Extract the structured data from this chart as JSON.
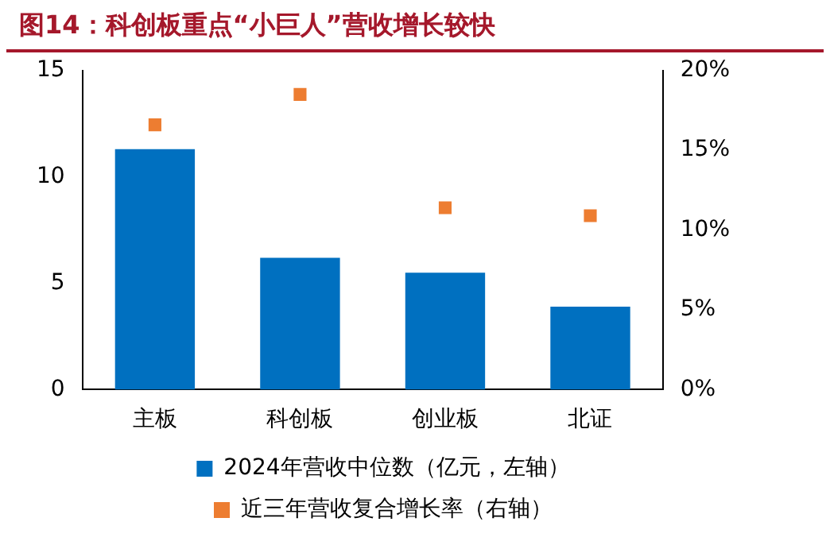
{
  "chart_data": {
    "type": "bar",
    "title": "图14：科创板重点“小巨人”营收增长较快",
    "categories": [
      "主板",
      "科创板",
      "创业板",
      "北证"
    ],
    "series": [
      {
        "name": "2024年营收中位数（亿元，左轴）",
        "color": "#0070c0",
        "values": [
          11.3,
          6.2,
          5.5,
          3.9
        ]
      },
      {
        "name": "近三年营收复合增长率（右轴）",
        "type": "scatter",
        "axis": "y2",
        "color": "#ed7d31",
        "values": [
          16.6,
          18.5,
          11.4,
          10.9
        ]
      }
    ],
    "ylim": [
      0,
      15
    ],
    "yticks": [
      0,
      5,
      10,
      15
    ],
    "y2lim": [
      0,
      20
    ],
    "y2ticks": [
      {
        "value": 0,
        "label": "0%"
      },
      {
        "value": 5,
        "label": "5%"
      },
      {
        "value": 10,
        "label": "10%"
      },
      {
        "value": 15,
        "label": "15%"
      },
      {
        "value": 20,
        "label": "20%"
      }
    ],
    "grid": false,
    "legend": "bottom",
    "marker": "square"
  }
}
